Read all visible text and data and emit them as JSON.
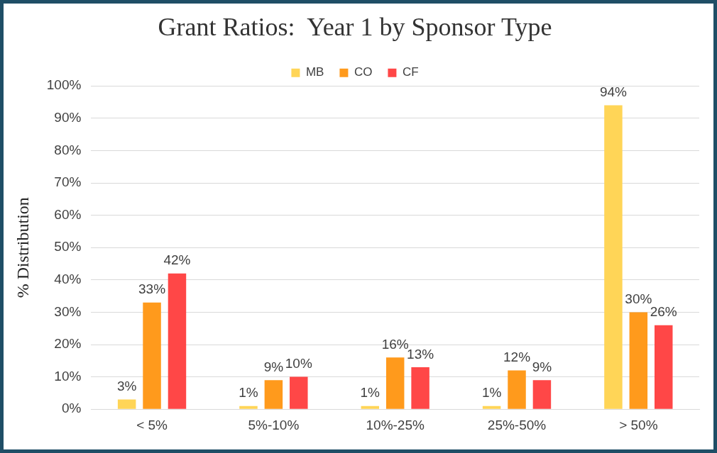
{
  "chart_data": {
    "type": "bar",
    "title": "Grant Ratios:  Year 1 by Sponsor Type",
    "ylabel": "% Distribution",
    "categories": [
      "< 5%",
      "5%-10%",
      "10%-25%",
      "25%-50%",
      "> 50%"
    ],
    "series": [
      {
        "name": "MB",
        "color": "#ffd557",
        "values": [
          3,
          1,
          1,
          1,
          94
        ],
        "value_labels": [
          "3%",
          "1%",
          "1%",
          "1%",
          "94%"
        ]
      },
      {
        "name": "CO",
        "color": "#ff9a1c",
        "values": [
          33,
          9,
          16,
          12,
          30
        ],
        "value_labels": [
          "33%",
          "9%",
          "16%",
          "12%",
          "30%"
        ]
      },
      {
        "name": "CF",
        "color": "#ff4747",
        "values": [
          42,
          10,
          13,
          9,
          26
        ],
        "value_labels": [
          "42%",
          "10%",
          "13%",
          "9%",
          "26%"
        ]
      }
    ],
    "ylim": [
      0,
      100
    ],
    "yticks": [
      {
        "value": 0,
        "label": "0%"
      },
      {
        "value": 10,
        "label": "10%"
      },
      {
        "value": 20,
        "label": "20%"
      },
      {
        "value": 30,
        "label": "30%"
      },
      {
        "value": 40,
        "label": "40%"
      },
      {
        "value": 50,
        "label": "50%"
      },
      {
        "value": 60,
        "label": "60%"
      },
      {
        "value": 70,
        "label": "70%"
      },
      {
        "value": 80,
        "label": "80%"
      },
      {
        "value": 90,
        "label": "90%"
      },
      {
        "value": 100,
        "label": "100%"
      }
    ],
    "grid": "y",
    "legend": "top"
  }
}
